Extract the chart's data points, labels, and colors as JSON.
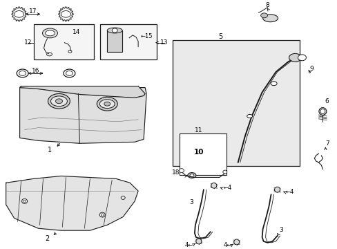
{
  "bg_color": "#ffffff",
  "lc": "#1a1a1a",
  "lc2": "#333333",
  "fill_light": "#e8e8e8",
  "fill_white": "#ffffff",
  "fill_med": "#d0d0d0",
  "figsize": [
    4.89,
    3.6
  ],
  "dpi": 100,
  "xlim": [
    0,
    489
  ],
  "ylim": [
    360,
    0
  ]
}
